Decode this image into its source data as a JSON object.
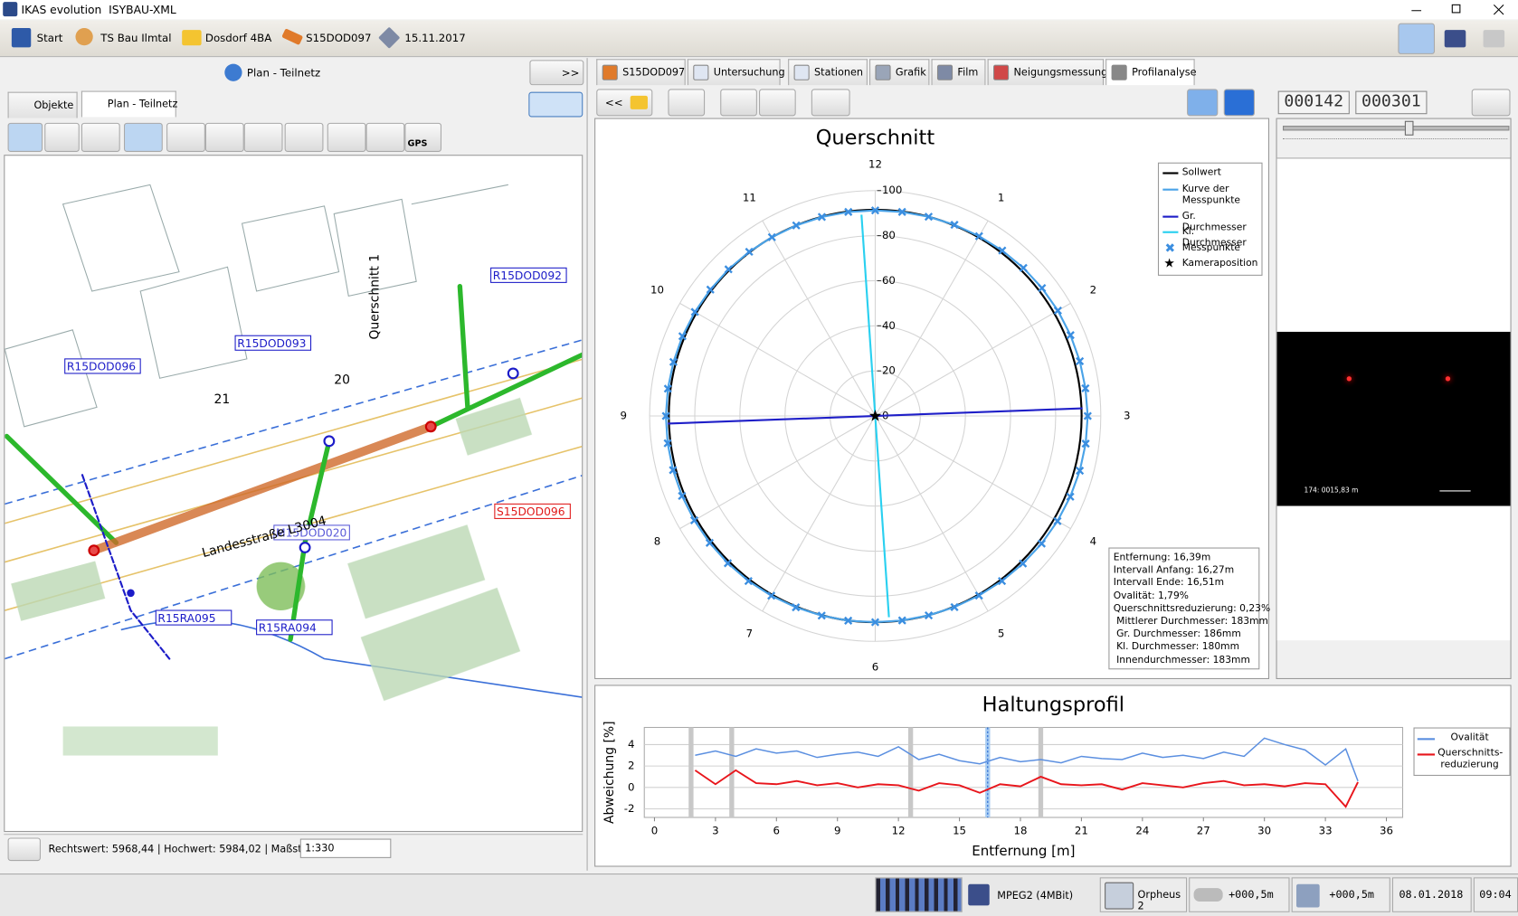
{
  "window": {
    "title": "IKAS evolution  ISYBAU-XML"
  },
  "toolbar": [
    "Start",
    "TS Bau Ilmtal",
    "Dosdorf 4BA",
    "S15DOD097",
    "15.11.2017"
  ],
  "left_panel": {
    "header": "Plan - Teilnetz",
    "expand_button": ">>",
    "tabs": [
      "Objekte",
      "Plan - Teilnetz"
    ],
    "gps": "GPS",
    "map_labels": [
      "R15DOD096",
      "R15DOD093",
      "R15DOD092",
      "S15DOD096",
      "M15DOD020",
      "R15RA095",
      "R15RA094",
      "Landesstraße L3004",
      "Querschnitt 1",
      "20",
      "21"
    ],
    "status": "Rechtswert: 5968,44 | Hochwert: 5984,02 | Maßstab:",
    "scale": "1:330"
  },
  "right_panel": {
    "tabs": [
      "S15DOD097",
      "Untersuchung",
      "Stationen",
      "Grafik",
      "Film",
      "Neigungsmessung",
      "Profilanalyse"
    ],
    "back_button": "<<",
    "counters": [
      "000142",
      "000301"
    ],
    "video_overlay": "174: 0015,83 m"
  },
  "chart_data": [
    {
      "type": "polar",
      "title": "Querschnitt",
      "clock_labels": [
        "12",
        "1",
        "2",
        "3",
        "4",
        "5",
        "6",
        "7",
        "8",
        "9",
        "10",
        "11"
      ],
      "rlim": [
        0,
        100
      ],
      "rticks": [
        0,
        20,
        40,
        60,
        80,
        100
      ],
      "theta": [
        0,
        7.5,
        15,
        22.5,
        30,
        37.5,
        45,
        52.5,
        60,
        67.5,
        75,
        82.5,
        90,
        97.5,
        105,
        112.5,
        120,
        127.5,
        135,
        142.5,
        150,
        157.5,
        165,
        172.5,
        180,
        187.5,
        195,
        202.5,
        210,
        217.5,
        225,
        232.5,
        240,
        247.5,
        255,
        262.5,
        270,
        277.5,
        285,
        292.5,
        300,
        307.5,
        315,
        322.5,
        330,
        337.5,
        345,
        352.5
      ],
      "series": [
        {
          "name": "Sollwert",
          "color": "#000000",
          "r": 91.5
        },
        {
          "name": "Kurve der Messpunkte",
          "color": "#4aa3e8",
          "values": [
            91.2,
            91.3,
            91.5,
            91.8,
            92.1,
            92.5,
            92.9,
            93.2,
            93.5,
            93.7,
            93.9,
            94.0,
            94.2,
            94.1,
            93.9,
            93.6,
            93.3,
            93.0,
            92.6,
            92.3,
            92.0,
            91.8,
            91.6,
            91.5,
            91.5,
            91.6,
            91.7,
            91.9,
            92.1,
            92.3,
            92.4,
            92.5,
            92.6,
            92.7,
            92.8,
            92.8,
            92.8,
            92.7,
            92.6,
            92.5,
            92.3,
            92.1,
            92.0,
            91.8,
            91.6,
            91.5,
            91.4,
            91.3
          ]
        },
        {
          "name": "Gr. Durchmesser",
          "color": "#1f1fc8",
          "r": [
            92,
            92
          ],
          "theta": [
            87.9,
            267.9
          ]
        },
        {
          "name": "Kl. Durchmesser",
          "color": "#2ad0f0",
          "r": [
            89.5,
            89.5
          ],
          "theta": [
            356.1,
            176.1
          ]
        },
        {
          "name": "Messpunkte",
          "color": "#3b8ee0",
          "marker": "x",
          "values": [
            91.2,
            91.3,
            91.5,
            91.8,
            92.1,
            92.5,
            92.9,
            93.2,
            93.5,
            93.7,
            93.9,
            94.0,
            94.2,
            94.1,
            93.9,
            93.6,
            93.3,
            93.0,
            92.6,
            92.3,
            92.0,
            91.8,
            91.6,
            91.5,
            91.5,
            91.6,
            91.7,
            91.9,
            92.1,
            92.3,
            92.4,
            92.5,
            92.6,
            92.7,
            92.8,
            92.8,
            92.8,
            92.7,
            92.6,
            92.5,
            92.3,
            92.1,
            92.0,
            91.8,
            91.6,
            91.5,
            91.4,
            91.3
          ]
        },
        {
          "name": "Kameraposition",
          "color": "#000000",
          "marker": "star",
          "r": [
            0
          ],
          "theta": [
            0
          ]
        }
      ],
      "info": [
        "Entfernung: 16,39m",
        "Intervall Anfang: 16,27m",
        "Intervall Ende: 16,51m",
        "Ovalität: 1,79%",
        "Querschnittsreduzierung: 0,23%",
        " Mittlerer Durchmesser: 183mm",
        " Gr. Durchmesser: 186mm",
        " Kl. Durchmesser: 180mm",
        " Innendurchmesser: 183mm"
      ]
    },
    {
      "type": "line",
      "title": "Haltungsprofil",
      "xlabel": "Entfernung [m]",
      "ylabel": "Abweichung [%]",
      "xlim": [
        -0.5,
        36.8
      ],
      "ylim": [
        -2.8,
        5.6
      ],
      "xticks": [
        0,
        3,
        6,
        9,
        12,
        15,
        18,
        21,
        24,
        27,
        30,
        33,
        36
      ],
      "yticks": [
        -2,
        0,
        2,
        4
      ],
      "grid": true,
      "event_x": [
        1.8,
        3.8,
        12.6,
        19.0
      ],
      "cursor_x": 16.39,
      "x": [
        2,
        3,
        4,
        5,
        6,
        7,
        8,
        9,
        10,
        11,
        12,
        13,
        14,
        15,
        16,
        17,
        18,
        19,
        20,
        21,
        22,
        23,
        24,
        25,
        26,
        27,
        28,
        29,
        30,
        31,
        32,
        33,
        34,
        34.6
      ],
      "series": [
        {
          "name": "Ovalität",
          "color": "#5b8fe0",
          "values": [
            3.0,
            3.4,
            2.9,
            3.6,
            3.2,
            3.4,
            2.8,
            3.1,
            3.3,
            2.9,
            3.8,
            2.6,
            3.1,
            2.5,
            2.2,
            2.8,
            2.4,
            2.6,
            2.3,
            2.9,
            2.7,
            2.6,
            3.2,
            2.8,
            3.0,
            2.7,
            3.3,
            2.9,
            4.6,
            4.0,
            3.5,
            2.1,
            3.6,
            0.6
          ]
        },
        {
          "name": "Querschnitts-reduzierung",
          "color": "#e8161c",
          "values": [
            1.6,
            0.3,
            1.6,
            0.4,
            0.3,
            0.6,
            0.2,
            0.4,
            0.0,
            0.3,
            0.2,
            -0.3,
            0.4,
            0.2,
            -0.5,
            0.3,
            0.1,
            1.0,
            0.3,
            0.2,
            0.3,
            -0.2,
            0.4,
            0.2,
            0.0,
            0.4,
            0.6,
            0.2,
            0.3,
            0.1,
            0.4,
            0.3,
            -1.8,
            0.5
          ]
        }
      ]
    }
  ],
  "status_bar": {
    "codec": "MPEG2 (4MBit)",
    "device": "Orpheus 2",
    "offsets": [
      "+000,5m",
      "+000,5m"
    ],
    "date": "08.01.2018",
    "time": "09:04"
  }
}
